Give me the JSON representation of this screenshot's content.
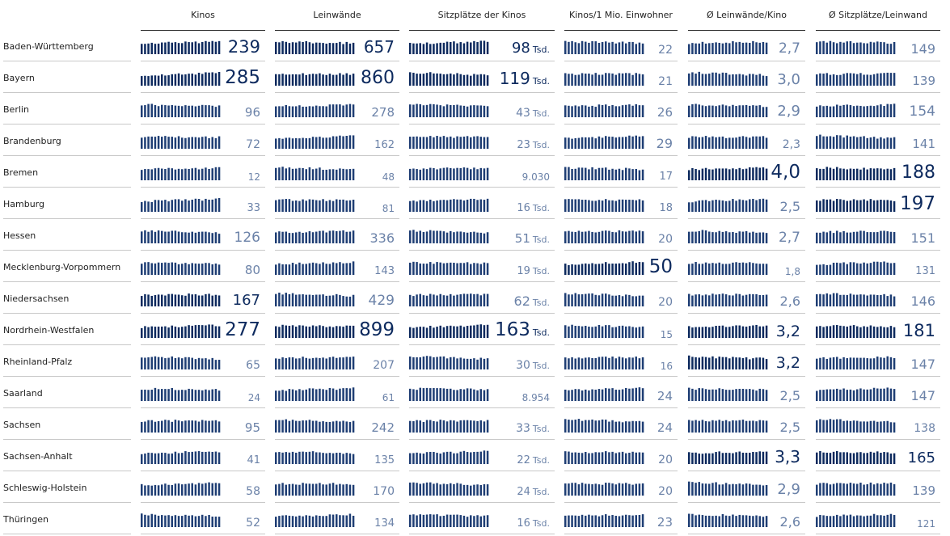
{
  "columns": [
    {
      "key": "kinos",
      "label": "Kinos"
    },
    {
      "key": "leinwaende",
      "label": "Leinwände"
    },
    {
      "key": "sitzplaetze",
      "label": "Sitzplätze der Kinos"
    },
    {
      "key": "kinos_pro_mio",
      "label": "Kinos/1 Mio. Einwohner"
    },
    {
      "key": "leinwaende_pro_kino",
      "label": "Ø Leinwände/Kino"
    },
    {
      "key": "sitzplaetze_pro_leinwand",
      "label": "Ø Sitzplätze/Leinwand"
    }
  ],
  "chart_data": {
    "type": "table",
    "title": "",
    "rows": [
      {
        "state": "Baden-Württemberg",
        "kinos": "239",
        "leinwaende": "657",
        "sitzplaetze": "98",
        "sitzplaetze_unit": "Tsd.",
        "kinos_pro_mio": "22",
        "leinwaende_pro_kino": "2,7",
        "sitzplaetze_pro_leinwand": "149"
      },
      {
        "state": "Bayern",
        "kinos": "285",
        "leinwaende": "860",
        "sitzplaetze": "119",
        "sitzplaetze_unit": "Tsd.",
        "kinos_pro_mio": "21",
        "leinwaende_pro_kino": "3,0",
        "sitzplaetze_pro_leinwand": "139"
      },
      {
        "state": "Berlin",
        "kinos": "96",
        "leinwaende": "278",
        "sitzplaetze": "43",
        "sitzplaetze_unit": "Tsd.",
        "kinos_pro_mio": "26",
        "leinwaende_pro_kino": "2,9",
        "sitzplaetze_pro_leinwand": "154"
      },
      {
        "state": "Brandenburg",
        "kinos": "72",
        "leinwaende": "162",
        "sitzplaetze": "23",
        "sitzplaetze_unit": "Tsd.",
        "kinos_pro_mio": "29",
        "leinwaende_pro_kino": "2,3",
        "sitzplaetze_pro_leinwand": "141"
      },
      {
        "state": "Bremen",
        "kinos": "12",
        "leinwaende": "48",
        "sitzplaetze": "9.030",
        "sitzplaetze_unit": "",
        "kinos_pro_mio": "17",
        "leinwaende_pro_kino": "4,0",
        "sitzplaetze_pro_leinwand": "188"
      },
      {
        "state": "Hamburg",
        "kinos": "33",
        "leinwaende": "81",
        "sitzplaetze": "16",
        "sitzplaetze_unit": "Tsd.",
        "kinos_pro_mio": "18",
        "leinwaende_pro_kino": "2,5",
        "sitzplaetze_pro_leinwand": "197"
      },
      {
        "state": "Hessen",
        "kinos": "126",
        "leinwaende": "336",
        "sitzplaetze": "51",
        "sitzplaetze_unit": "Tsd.",
        "kinos_pro_mio": "20",
        "leinwaende_pro_kino": "2,7",
        "sitzplaetze_pro_leinwand": "151"
      },
      {
        "state": "Mecklenburg-Vorpommern",
        "kinos": "80",
        "leinwaende": "143",
        "sitzplaetze": "19",
        "sitzplaetze_unit": "Tsd.",
        "kinos_pro_mio": "50",
        "leinwaende_pro_kino": "1,8",
        "sitzplaetze_pro_leinwand": "131"
      },
      {
        "state": "Niedersachsen",
        "kinos": "167",
        "leinwaende": "429",
        "sitzplaetze": "62",
        "sitzplaetze_unit": "Tsd.",
        "kinos_pro_mio": "20",
        "leinwaende_pro_kino": "2,6",
        "sitzplaetze_pro_leinwand": "146"
      },
      {
        "state": "Nordrhein-Westfalen",
        "kinos": "277",
        "leinwaende": "899",
        "sitzplaetze": "163",
        "sitzplaetze_unit": "Tsd.",
        "kinos_pro_mio": "15",
        "leinwaende_pro_kino": "3,2",
        "sitzplaetze_pro_leinwand": "181"
      },
      {
        "state": "Rheinland-Pfalz",
        "kinos": "65",
        "leinwaende": "207",
        "sitzplaetze": "30",
        "sitzplaetze_unit": "Tsd.",
        "kinos_pro_mio": "16",
        "leinwaende_pro_kino": "3,2",
        "sitzplaetze_pro_leinwand": "147"
      },
      {
        "state": "Saarland",
        "kinos": "24",
        "leinwaende": "61",
        "sitzplaetze": "8.954",
        "sitzplaetze_unit": "",
        "kinos_pro_mio": "24",
        "leinwaende_pro_kino": "2,5",
        "sitzplaetze_pro_leinwand": "147"
      },
      {
        "state": "Sachsen",
        "kinos": "95",
        "leinwaende": "242",
        "sitzplaetze": "33",
        "sitzplaetze_unit": "Tsd.",
        "kinos_pro_mio": "24",
        "leinwaende_pro_kino": "2,5",
        "sitzplaetze_pro_leinwand": "138"
      },
      {
        "state": "Sachsen-Anhalt",
        "kinos": "41",
        "leinwaende": "135",
        "sitzplaetze": "22",
        "sitzplaetze_unit": "Tsd.",
        "kinos_pro_mio": "20",
        "leinwaende_pro_kino": "3,3",
        "sitzplaetze_pro_leinwand": "165"
      },
      {
        "state": "Schleswig-Holstein",
        "kinos": "58",
        "leinwaende": "170",
        "sitzplaetze": "24",
        "sitzplaetze_unit": "Tsd.",
        "kinos_pro_mio": "20",
        "leinwaende_pro_kino": "2,9",
        "sitzplaetze_pro_leinwand": "139"
      },
      {
        "state": "Thüringen",
        "kinos": "52",
        "leinwaende": "134",
        "sitzplaetze": "16",
        "sitzplaetze_unit": "Tsd.",
        "kinos_pro_mio": "23",
        "leinwaende_pro_kino": "2,6",
        "sitzplaetze_pro_leinwand": "121"
      }
    ]
  },
  "colors": {
    "dark": "#0d2a5e",
    "light": "#6b82a8",
    "text": "#222222"
  }
}
